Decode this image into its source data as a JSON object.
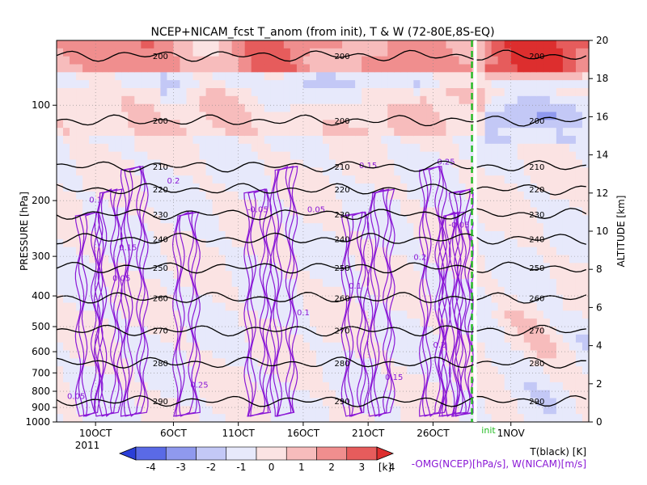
{
  "chart_data": {
    "type": "heatmap",
    "title": "NCEP+NICAM_fcst T_anom (from init), T & W  (72-80E,8S-EQ)",
    "ylabel_left": "PRESSURE [hPa]",
    "ylabel_right": "ALTITUDE [km]",
    "pressure_ticks": [
      {
        "label": "100",
        "value": 100
      },
      {
        "label": "200",
        "value": 200
      },
      {
        "label": "300",
        "value": 300
      },
      {
        "label": "400",
        "value": 400
      },
      {
        "label": "500",
        "value": 500
      },
      {
        "label": "600",
        "value": 600
      },
      {
        "label": "700",
        "value": 700
      },
      {
        "label": "800",
        "value": 800
      },
      {
        "label": "900",
        "value": 900
      },
      {
        "label": "1000",
        "value": 1000
      }
    ],
    "altitude_ticks": [
      {
        "label": "0",
        "value": 0
      },
      {
        "label": "2",
        "value": 2
      },
      {
        "label": "4",
        "value": 4
      },
      {
        "label": "6",
        "value": 6
      },
      {
        "label": "8",
        "value": 8
      },
      {
        "label": "10",
        "value": 10
      },
      {
        "label": "12",
        "value": 12
      },
      {
        "label": "14",
        "value": 14
      },
      {
        "label": "16",
        "value": 16
      },
      {
        "label": "18",
        "value": 18
      },
      {
        "label": "20",
        "value": 20
      }
    ],
    "x_ticks": [
      {
        "label": "10OCT",
        "day": 10
      },
      {
        "label": "6OCT",
        "day": 16
      },
      {
        "label": "11OCT",
        "day": 21
      },
      {
        "label": "16OCT",
        "day": 26
      },
      {
        "label": "21OCT",
        "day": 31
      },
      {
        "label": "26OCT",
        "day": 36
      },
      {
        "label": "1NOV",
        "day": 42
      }
    ],
    "year_label": "2011",
    "init_label": "init",
    "init_day": 39,
    "x_range": [
      7,
      48
    ],
    "colorbar": {
      "ticks": [
        "-4",
        "-3",
        "-2",
        "-1",
        "0",
        "1",
        "2",
        "3",
        "4"
      ],
      "unit": "[k]",
      "colors": [
        "#2b3fd8",
        "#5a6ae6",
        "#8f99ee",
        "#c3c8f6",
        "#e7e9fb",
        "#fbe3e3",
        "#f7bcbc",
        "#f08e8e",
        "#e65c5c",
        "#dd2e2e"
      ]
    },
    "legend": {
      "t_label": "T(black) [K]",
      "w_label": "-OMG(NCEP)[hPa/s], W(NICAM)[m/s]"
    },
    "temperature_contours": [
      {
        "label": "200",
        "z": 19.2
      },
      {
        "label": "200",
        "z": 15.8
      },
      {
        "label": "210",
        "z": 13.4
      },
      {
        "label": "220",
        "z": 12.2
      },
      {
        "label": "230",
        "z": 10.9
      },
      {
        "label": "240",
        "z": 9.6
      },
      {
        "label": "250",
        "z": 8.1
      },
      {
        "label": "260",
        "z": 6.5
      },
      {
        "label": "270",
        "z": 4.8
      },
      {
        "label": "280",
        "z": 3.1
      },
      {
        "label": "290",
        "z": 1.1
      }
    ],
    "w_labels": [
      "0.05",
      "0.1",
      "0.15",
      "0.2",
      "0.25",
      "-0.05"
    ]
  }
}
